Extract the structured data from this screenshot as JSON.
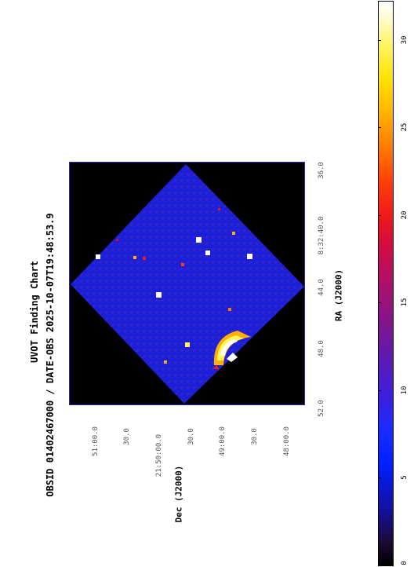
{
  "title": {
    "line1": "UVOT Finding Chart",
    "line2": "OBSID 01402467000 / DATE-OBS 2025-10-07T19:48:53.9"
  },
  "axes": {
    "ylabel": "Dec (J2000)",
    "xlabel": "RA (J2000)",
    "ra_ticks": [
      "52.0",
      "48.0",
      "44.0",
      "8:32:40.0",
      "36.0"
    ],
    "dec_ticks": [
      "51:00.0",
      "30.0",
      "21:50:00.0",
      "30.0",
      "49:00.0",
      "30.0",
      "48:00.0"
    ]
  },
  "colorbar": {
    "ticks": [
      "0",
      "5",
      "10",
      "15",
      "20",
      "25",
      "30"
    ],
    "range": [
      0,
      32
    ]
  },
  "colors": {
    "frame": "#2a2ab0",
    "background": "#000000"
  }
}
